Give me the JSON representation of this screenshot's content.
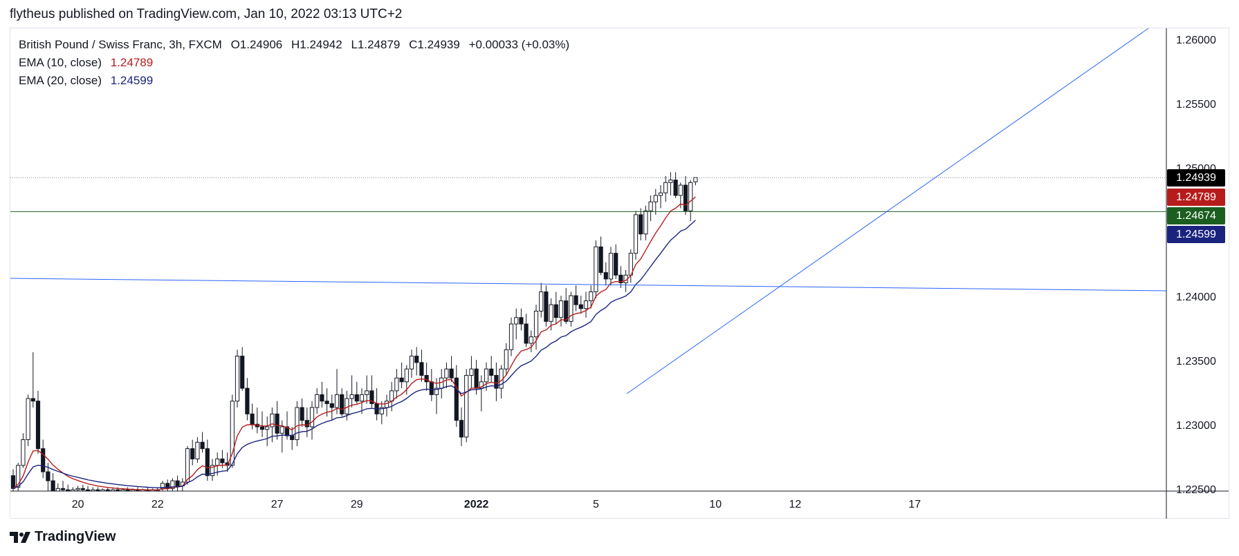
{
  "header": {
    "publish_line": "flytheus published on TradingView.com, Jan 10, 2022 03:13 UTC+2"
  },
  "legend": {
    "symbol": "British Pound / Swiss Franc, 3h, FXCM",
    "ohlc": {
      "o_label": "O",
      "o": "1.24906",
      "h_label": "H",
      "h": "1.24942",
      "l_label": "L",
      "l": "1.24879",
      "c_label": "C",
      "c": "1.24939",
      "change": "+0.00033 (+0.03%)"
    },
    "ema10": {
      "label": "EMA (10, close)",
      "value": "1.24789",
      "color": "#b71c1c"
    },
    "ema20": {
      "label": "EMA (20, close)",
      "value": "1.24599",
      "color": "#1a237e"
    }
  },
  "price_tags": [
    {
      "value": "1.24939",
      "color": "#000000"
    },
    {
      "value": "1.24789",
      "color": "#b71c1c"
    },
    {
      "value": "1.24674",
      "color": "#1b5e20"
    },
    {
      "value": "1.24599",
      "color": "#1a237e"
    }
  ],
  "brand": {
    "name": "TradingView"
  },
  "chart_data": {
    "type": "candlestick",
    "ylim": [
      1.225,
      1.261
    ],
    "yticks": [
      "1.22500",
      "1.23000",
      "1.23500",
      "1.24000",
      "1.24500",
      "1.25000",
      "1.25500",
      "1.26000"
    ],
    "xticks": [
      {
        "label": "20",
        "index": 13,
        "bold": false
      },
      {
        "label": "22",
        "index": 29,
        "bold": false
      },
      {
        "label": "27",
        "index": 53,
        "bold": false
      },
      {
        "label": "29",
        "index": 69,
        "bold": false
      },
      {
        "label": "2022",
        "index": 93,
        "bold": true
      },
      {
        "label": "5",
        "index": 117,
        "bold": false
      },
      {
        "label": "10",
        "index": 141,
        "bold": false
      },
      {
        "label": "12",
        "index": 157,
        "bold": false
      },
      {
        "label": "17",
        "index": 181,
        "bold": false
      }
    ],
    "candles_ohlc": [
      [
        1.2262,
        1.2267,
        1.2249,
        1.2252
      ],
      [
        1.2253,
        1.2272,
        1.2249,
        1.227
      ],
      [
        1.227,
        1.2295,
        1.2268,
        1.229
      ],
      [
        1.229,
        1.2325,
        1.2285,
        1.2322
      ],
      [
        1.2322,
        1.2358,
        1.2315,
        1.232
      ],
      [
        1.232,
        1.2328,
        1.2279,
        1.2283
      ],
      [
        1.2283,
        1.229,
        1.226,
        1.2265
      ],
      [
        1.2265,
        1.2272,
        1.2249,
        1.2258
      ],
      [
        1.2258,
        1.2264,
        1.2249,
        1.225
      ],
      [
        1.225,
        1.2256,
        1.2249,
        1.2252
      ],
      [
        1.2252,
        1.2258,
        1.2249,
        1.2251
      ],
      [
        1.2251,
        1.2255,
        1.2249,
        1.225
      ],
      [
        1.225,
        1.2253,
        1.2249,
        1.2251
      ],
      [
        1.2251,
        1.2254,
        1.2249,
        1.2252
      ],
      [
        1.2252,
        1.2255,
        1.2249,
        1.2251
      ],
      [
        1.2251,
        1.2254,
        1.2249,
        1.225
      ],
      [
        1.225,
        1.2253,
        1.2249,
        1.2251
      ],
      [
        1.2251,
        1.2253,
        1.2249,
        1.225
      ],
      [
        1.225,
        1.2252,
        1.2249,
        1.2251
      ],
      [
        1.2251,
        1.2253,
        1.2249,
        1.225
      ],
      [
        1.225,
        1.2252,
        1.2249,
        1.2251
      ],
      [
        1.2251,
        1.2253,
        1.2249,
        1.225
      ],
      [
        1.225,
        1.2252,
        1.2249,
        1.2251
      ],
      [
        1.2251,
        1.2253,
        1.2249,
        1.225
      ],
      [
        1.225,
        1.2252,
        1.2249,
        1.2251
      ],
      [
        1.2251,
        1.2253,
        1.2249,
        1.225
      ],
      [
        1.225,
        1.2252,
        1.2249,
        1.2251
      ],
      [
        1.2251,
        1.2253,
        1.2249,
        1.225
      ],
      [
        1.225,
        1.2252,
        1.2249,
        1.2251
      ],
      [
        1.2251,
        1.2253,
        1.2249,
        1.225
      ],
      [
        1.2252,
        1.2258,
        1.2249,
        1.2256
      ],
      [
        1.2256,
        1.2259,
        1.2249,
        1.2252
      ],
      [
        1.2252,
        1.226,
        1.2249,
        1.2258
      ],
      [
        1.2258,
        1.2262,
        1.2249,
        1.2254
      ],
      [
        1.2254,
        1.226,
        1.2249,
        1.2257
      ],
      [
        1.2257,
        1.2285,
        1.2255,
        1.2283
      ],
      [
        1.2283,
        1.229,
        1.227,
        1.2275
      ],
      [
        1.2275,
        1.2292,
        1.2272,
        1.2288
      ],
      [
        1.2288,
        1.2296,
        1.228,
        1.2283
      ],
      [
        1.2283,
        1.229,
        1.2258,
        1.2262
      ],
      [
        1.2262,
        1.2275,
        1.2258,
        1.227
      ],
      [
        1.227,
        1.228,
        1.2262,
        1.2275
      ],
      [
        1.2275,
        1.2282,
        1.2268,
        1.2272
      ],
      [
        1.2272,
        1.228,
        1.2265,
        1.227
      ],
      [
        1.227,
        1.2325,
        1.2268,
        1.232
      ],
      [
        1.232,
        1.236,
        1.2315,
        1.2355
      ],
      [
        1.2355,
        1.2362,
        1.2328,
        1.233
      ],
      [
        1.233,
        1.2338,
        1.2305,
        1.231
      ],
      [
        1.231,
        1.2318,
        1.2298,
        1.2302
      ],
      [
        1.2302,
        1.2315,
        1.2295,
        1.23
      ],
      [
        1.23,
        1.2312,
        1.2292,
        1.2298
      ],
      [
        1.2298,
        1.2308,
        1.2285,
        1.23
      ],
      [
        1.23,
        1.2315,
        1.2288,
        1.231
      ],
      [
        1.231,
        1.232,
        1.229,
        1.2295
      ],
      [
        1.2295,
        1.2305,
        1.228,
        1.23
      ],
      [
        1.23,
        1.2312,
        1.229,
        1.2293
      ],
      [
        1.2293,
        1.23,
        1.2282,
        1.229
      ],
      [
        1.229,
        1.232,
        1.2285,
        1.2315
      ],
      [
        1.2315,
        1.2322,
        1.23,
        1.2305
      ],
      [
        1.2305,
        1.2315,
        1.2292,
        1.23
      ],
      [
        1.23,
        1.232,
        1.229,
        1.2315
      ],
      [
        1.2315,
        1.233,
        1.231,
        1.2325
      ],
      [
        1.2325,
        1.2335,
        1.2315,
        1.232
      ],
      [
        1.232,
        1.233,
        1.2308,
        1.2318
      ],
      [
        1.2318,
        1.2325,
        1.2305,
        1.2315
      ],
      [
        1.2315,
        1.2345,
        1.231,
        1.2325
      ],
      [
        1.2325,
        1.233,
        1.2308,
        1.231
      ],
      [
        1.231,
        1.2328,
        1.2305,
        1.2322
      ],
      [
        1.2322,
        1.234,
        1.2315,
        1.2325
      ],
      [
        1.2325,
        1.2335,
        1.2318,
        1.232
      ],
      [
        1.232,
        1.233,
        1.231,
        1.2325
      ],
      [
        1.2325,
        1.234,
        1.2318,
        1.2328
      ],
      [
        1.2328,
        1.234,
        1.2315,
        1.2318
      ],
      [
        1.2318,
        1.233,
        1.2305,
        1.231
      ],
      [
        1.231,
        1.232,
        1.2302,
        1.2315
      ],
      [
        1.2315,
        1.2325,
        1.2308,
        1.232
      ],
      [
        1.232,
        1.2335,
        1.2312,
        1.2328
      ],
      [
        1.2328,
        1.2345,
        1.2322,
        1.2338
      ],
      [
        1.2338,
        1.235,
        1.233,
        1.2335
      ],
      [
        1.2335,
        1.2348,
        1.2325,
        1.2345
      ],
      [
        1.2345,
        1.236,
        1.2338,
        1.2355
      ],
      [
        1.2355,
        1.2362,
        1.234,
        1.235
      ],
      [
        1.235,
        1.236,
        1.2335,
        1.234
      ],
      [
        1.234,
        1.235,
        1.2328,
        1.2335
      ],
      [
        1.2335,
        1.2345,
        1.232,
        1.2325
      ],
      [
        1.2325,
        1.2338,
        1.231,
        1.233
      ],
      [
        1.233,
        1.2345,
        1.2322,
        1.2338
      ],
      [
        1.2338,
        1.235,
        1.233,
        1.2345
      ],
      [
        1.2345,
        1.2355,
        1.2335,
        1.2338
      ],
      [
        1.2338,
        1.2348,
        1.23,
        1.2305
      ],
      [
        1.2305,
        1.2315,
        1.2285,
        1.2292
      ],
      [
        1.2292,
        1.2345,
        1.2288,
        1.234
      ],
      [
        1.234,
        1.2355,
        1.233,
        1.2345
      ],
      [
        1.2345,
        1.2352,
        1.2325,
        1.233
      ],
      [
        1.233,
        1.234,
        1.2312,
        1.2335
      ],
      [
        1.2335,
        1.235,
        1.2328,
        1.2345
      ],
      [
        1.2345,
        1.2355,
        1.2335,
        1.234
      ],
      [
        1.234,
        1.235,
        1.232,
        1.233
      ],
      [
        1.233,
        1.2348,
        1.2322,
        1.2345
      ],
      [
        1.2345,
        1.2365,
        1.234,
        1.236
      ],
      [
        1.236,
        1.2385,
        1.2355,
        1.238
      ],
      [
        1.238,
        1.2392,
        1.2368,
        1.2385
      ],
      [
        1.2385,
        1.2392,
        1.2375,
        1.238
      ],
      [
        1.238,
        1.2388,
        1.2362,
        1.2365
      ],
      [
        1.2365,
        1.2375,
        1.2358,
        1.237
      ],
      [
        1.237,
        1.2395,
        1.236,
        1.239
      ],
      [
        1.239,
        1.2412,
        1.2385,
        1.2405
      ],
      [
        1.2405,
        1.241,
        1.2378,
        1.2382
      ],
      [
        1.2382,
        1.24,
        1.2375,
        1.2395
      ],
      [
        1.2395,
        1.2405,
        1.238,
        1.2385
      ],
      [
        1.2385,
        1.2402,
        1.2378,
        1.2398
      ],
      [
        1.2398,
        1.2408,
        1.238,
        1.2382
      ],
      [
        1.2382,
        1.2405,
        1.2378,
        1.2402
      ],
      [
        1.2402,
        1.241,
        1.239,
        1.2395
      ],
      [
        1.2395,
        1.2402,
        1.2388,
        1.2392
      ],
      [
        1.2392,
        1.2405,
        1.2385,
        1.2398
      ],
      [
        1.2398,
        1.241,
        1.2392,
        1.2405
      ],
      [
        1.2405,
        1.2445,
        1.24,
        1.244
      ],
      [
        1.244,
        1.2448,
        1.2418,
        1.242
      ],
      [
        1.242,
        1.2428,
        1.241,
        1.2415
      ],
      [
        1.2415,
        1.244,
        1.241,
        1.2435
      ],
      [
        1.2435,
        1.2442,
        1.2415,
        1.2418
      ],
      [
        1.2418,
        1.2425,
        1.2408,
        1.2412
      ],
      [
        1.2412,
        1.2422,
        1.2405,
        1.2418
      ],
      [
        1.2418,
        1.2438,
        1.2412,
        1.2435
      ],
      [
        1.2435,
        1.2468,
        1.243,
        1.2465
      ],
      [
        1.2465,
        1.247,
        1.2445,
        1.245
      ],
      [
        1.245,
        1.2472,
        1.2445,
        1.2468
      ],
      [
        1.2468,
        1.248,
        1.246,
        1.2475
      ],
      [
        1.2475,
        1.2485,
        1.2465,
        1.248
      ],
      [
        1.248,
        1.2488,
        1.247,
        1.2482
      ],
      [
        1.2482,
        1.2495,
        1.2475,
        1.249
      ],
      [
        1.249,
        1.2498,
        1.248,
        1.2492
      ],
      [
        1.2492,
        1.2498,
        1.2478,
        1.248
      ],
      [
        1.248,
        1.249,
        1.247,
        1.2488
      ],
      [
        1.2488,
        1.2495,
        1.2465,
        1.2468
      ],
      [
        1.2468,
        1.2492,
        1.246,
        1.249
      ],
      [
        1.24906,
        1.24942,
        1.24879,
        1.24939
      ]
    ]
  }
}
